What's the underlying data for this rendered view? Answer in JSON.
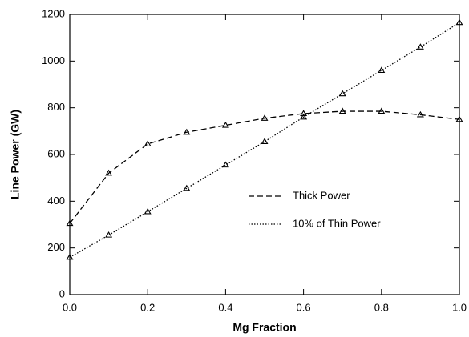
{
  "chart_data": {
    "type": "line",
    "x_label": "Mg Fraction",
    "y_label": "Line Power (GW)",
    "x": [
      0,
      0.1,
      0.2,
      0.3,
      0.4,
      0.5,
      0.6,
      0.7,
      0.8,
      0.9,
      1.0
    ],
    "series": [
      {
        "name": "Thick Power",
        "color": "#000000",
        "line_style": "dashed",
        "marker": "triangle",
        "values": [
          305,
          520,
          645,
          695,
          725,
          755,
          775,
          785,
          785,
          770,
          750
        ]
      },
      {
        "name": "10% of Thin Power",
        "color": "#000000",
        "line_style": "dotted",
        "marker": "triangle",
        "values": [
          160,
          255,
          355,
          455,
          555,
          655,
          760,
          860,
          960,
          1060,
          1165
        ]
      }
    ],
    "xlim": [
      0,
      1.0
    ],
    "ylim": [
      0,
      1200
    ],
    "xticks": [
      {
        "value": 0,
        "label": "0.0"
      },
      0.2,
      0.4,
      0.6,
      0.8,
      {
        "value": 1.0,
        "label": "1.0"
      }
    ],
    "yticks": [
      0,
      200,
      400,
      600,
      800,
      1000,
      1200
    ],
    "grid": false
  }
}
